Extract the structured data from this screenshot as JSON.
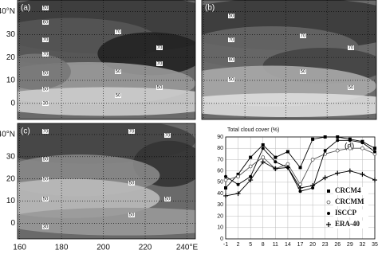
{
  "chart_data": [
    {
      "type": "contour",
      "panel_label": "(a)",
      "ylim": [
        -7,
        45
      ],
      "xlim": [
        159,
        244
      ],
      "yticks": [
        0,
        10,
        20,
        30,
        {
          "value": 40,
          "label": "40°N"
        }
      ],
      "contour_labels": [
        50,
        60,
        70,
        70,
        50,
        50,
        30,
        70,
        50,
        50,
        70,
        70,
        50
      ]
    },
    {
      "type": "contour",
      "panel_label": "(b)",
      "ylim": [
        -7,
        45
      ],
      "xlim": [
        159,
        244
      ],
      "contour_labels": [
        50,
        70,
        60,
        50,
        70,
        50,
        70,
        50
      ]
    },
    {
      "type": "contour",
      "panel_label": "(c)",
      "ylim": [
        -7,
        45
      ],
      "xlim": [
        159,
        244
      ],
      "xticks": [
        160,
        180,
        200,
        220,
        {
          "value": 240,
          "label": "240°E"
        }
      ],
      "yticks": [
        0,
        10,
        20,
        30,
        {
          "value": 40,
          "label": "40°N"
        }
      ],
      "contour_labels": [
        70,
        50,
        50,
        50,
        30,
        70,
        50,
        50,
        70,
        50
      ]
    },
    {
      "type": "line",
      "panel_label": "(d)",
      "title": "Total cloud cover (%)",
      "x": [
        -1,
        2,
        5,
        8,
        11,
        14,
        17,
        20,
        23,
        26,
        29,
        32,
        35
      ],
      "xlim": [
        -1,
        35
      ],
      "xticks": [
        -1,
        2,
        5,
        8,
        11,
        14,
        17,
        20,
        23,
        26,
        29,
        32,
        35
      ],
      "ylim": [
        0,
        90
      ],
      "yticks": [
        0,
        10,
        20,
        30,
        40,
        50,
        60,
        70,
        80,
        90
      ],
      "series": [
        {
          "name": "CRCM4",
          "color": "#000000",
          "marker": "square",
          "values": [
            45,
            57,
            72,
            83,
            72,
            77,
            63,
            88,
            90,
            90,
            88,
            86,
            80
          ]
        },
        {
          "name": "CRCMM",
          "color": "#555555",
          "marker": "open-circle",
          "values": [
            52,
            55,
            64,
            72,
            62,
            66,
            48,
            70,
            75,
            78,
            80,
            80,
            75
          ]
        },
        {
          "name": "ISCCP",
          "color": "#000000",
          "marker": "circle",
          "values": [
            55,
            48,
            55,
            80,
            68,
            63,
            42,
            45,
            78,
            87,
            87,
            85,
            77
          ]
        },
        {
          "name": "ERA-40",
          "color": "#000000",
          "marker": "plus",
          "values": [
            38,
            40,
            52,
            68,
            62,
            63,
            45,
            47,
            54,
            58,
            60,
            57,
            52
          ]
        }
      ]
    }
  ]
}
